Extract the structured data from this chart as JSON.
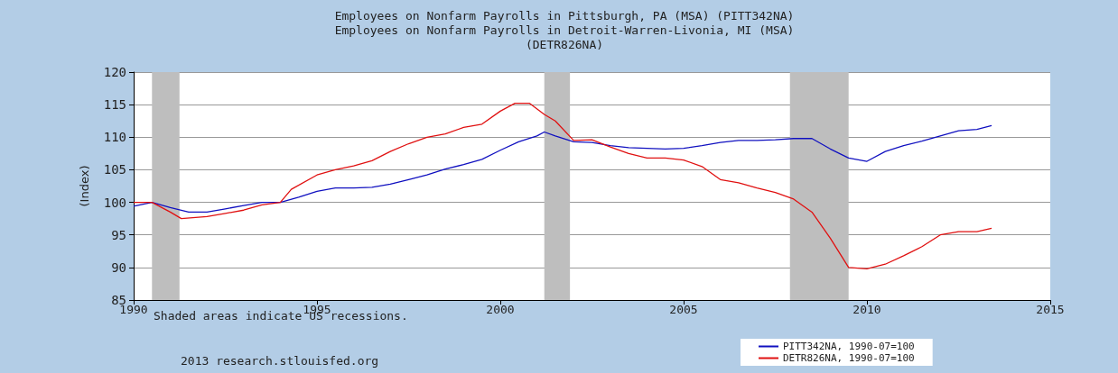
{
  "chart_data": {
    "type": "line",
    "title": "Employees on Nonfarm Payrolls in Pittsburgh, PA (MSA) (PITT342NA)\nEmployees on Nonfarm Payrolls in Detroit-Warren-Livonia, MI (MSA)\n(DETR826NA)",
    "ylabel": "(Index)",
    "xlim": [
      1990,
      2015
    ],
    "xticks": [
      1990,
      1995,
      2000,
      2005,
      2010,
      2015
    ],
    "ylim": [
      85,
      120
    ],
    "yticks": [
      85,
      90,
      95,
      100,
      105,
      110,
      115,
      120
    ],
    "grid": "y",
    "legend": "bottom right",
    "marker": "none",
    "line_style": "solid",
    "annotations": [
      "Shaded areas indicate US recessions.",
      "2013 research.stlouisfed.org"
    ],
    "bands": [
      {
        "axis": "x",
        "from": 1990.5,
        "to": 1991.25,
        "color": "#bebebe"
      },
      {
        "axis": "x",
        "from": 2001.2,
        "to": 2001.9,
        "color": "#bebebe"
      },
      {
        "axis": "x",
        "from": 2007.9,
        "to": 2009.5,
        "color": "#bebebe"
      }
    ],
    "series": [
      {
        "name": "PITT342NA, 1990-07=100",
        "color": "#1010c0",
        "x": [
          1990,
          1990.5,
          1991,
          1991.5,
          1992,
          1992.5,
          1993,
          1993.5,
          1994,
          1994.5,
          1995,
          1995.5,
          1996,
          1996.5,
          1997,
          1997.5,
          1998,
          1998.5,
          1999,
          1999.5,
          2000,
          2000.5,
          2001,
          2001.2,
          2001.5,
          2002,
          2002.5,
          2003,
          2003.5,
          2004,
          2004.5,
          2005,
          2005.5,
          2006,
          2006.5,
          2007,
          2007.5,
          2008,
          2008.5,
          2009,
          2009.5,
          2010,
          2010.5,
          2011,
          2011.5,
          2012,
          2012.5,
          2013,
          2013.4
        ],
        "values": [
          99.4,
          100,
          99.2,
          98.5,
          98.5,
          99,
          99.5,
          100,
          100,
          100.8,
          101.7,
          102.2,
          102.2,
          102.3,
          102.8,
          103.5,
          104.2,
          105.1,
          105.8,
          106.6,
          108,
          109.3,
          110.2,
          110.8,
          110.2,
          109.3,
          109.2,
          108.7,
          108.4,
          108.3,
          108.2,
          108.3,
          108.7,
          109.2,
          109.5,
          109.5,
          109.6,
          109.8,
          109.8,
          108.2,
          106.8,
          106.3,
          107.8,
          108.7,
          109.4,
          110.2,
          111,
          111.2,
          111.8
        ]
      },
      {
        "name": "DETR826NA, 1990-07=100",
        "color": "#e01010",
        "x": [
          1990,
          1990.5,
          1991,
          1991.3,
          1992,
          1992.5,
          1993,
          1993.5,
          1994,
          1994.3,
          1995,
          1995.5,
          1996,
          1996.5,
          1997,
          1997.5,
          1998,
          1998.5,
          1999,
          1999.5,
          2000,
          2000.4,
          2000.8,
          2001.2,
          2001.5,
          2002,
          2002.5,
          2003,
          2003.5,
          2004,
          2004.5,
          2005,
          2005.5,
          2006,
          2006.5,
          2007,
          2007.5,
          2008,
          2008.5,
          2009,
          2009.5,
          2010,
          2010.5,
          2011,
          2011.5,
          2012,
          2012.5,
          2013,
          2013.4
        ],
        "values": [
          100,
          100,
          98.5,
          97.5,
          97.8,
          98.3,
          98.8,
          99.6,
          100,
          102,
          104.2,
          105,
          105.6,
          106.4,
          107.8,
          109,
          110,
          110.5,
          111.5,
          112,
          114,
          115.2,
          115.2,
          113.5,
          112.5,
          109.5,
          109.6,
          108.5,
          107.5,
          106.8,
          106.8,
          106.5,
          105.5,
          103.5,
          103,
          102.2,
          101.5,
          100.5,
          98.5,
          94.5,
          90,
          89.8,
          90.5,
          91.8,
          93.2,
          95,
          95.5,
          95.5,
          96
        ]
      }
    ]
  }
}
